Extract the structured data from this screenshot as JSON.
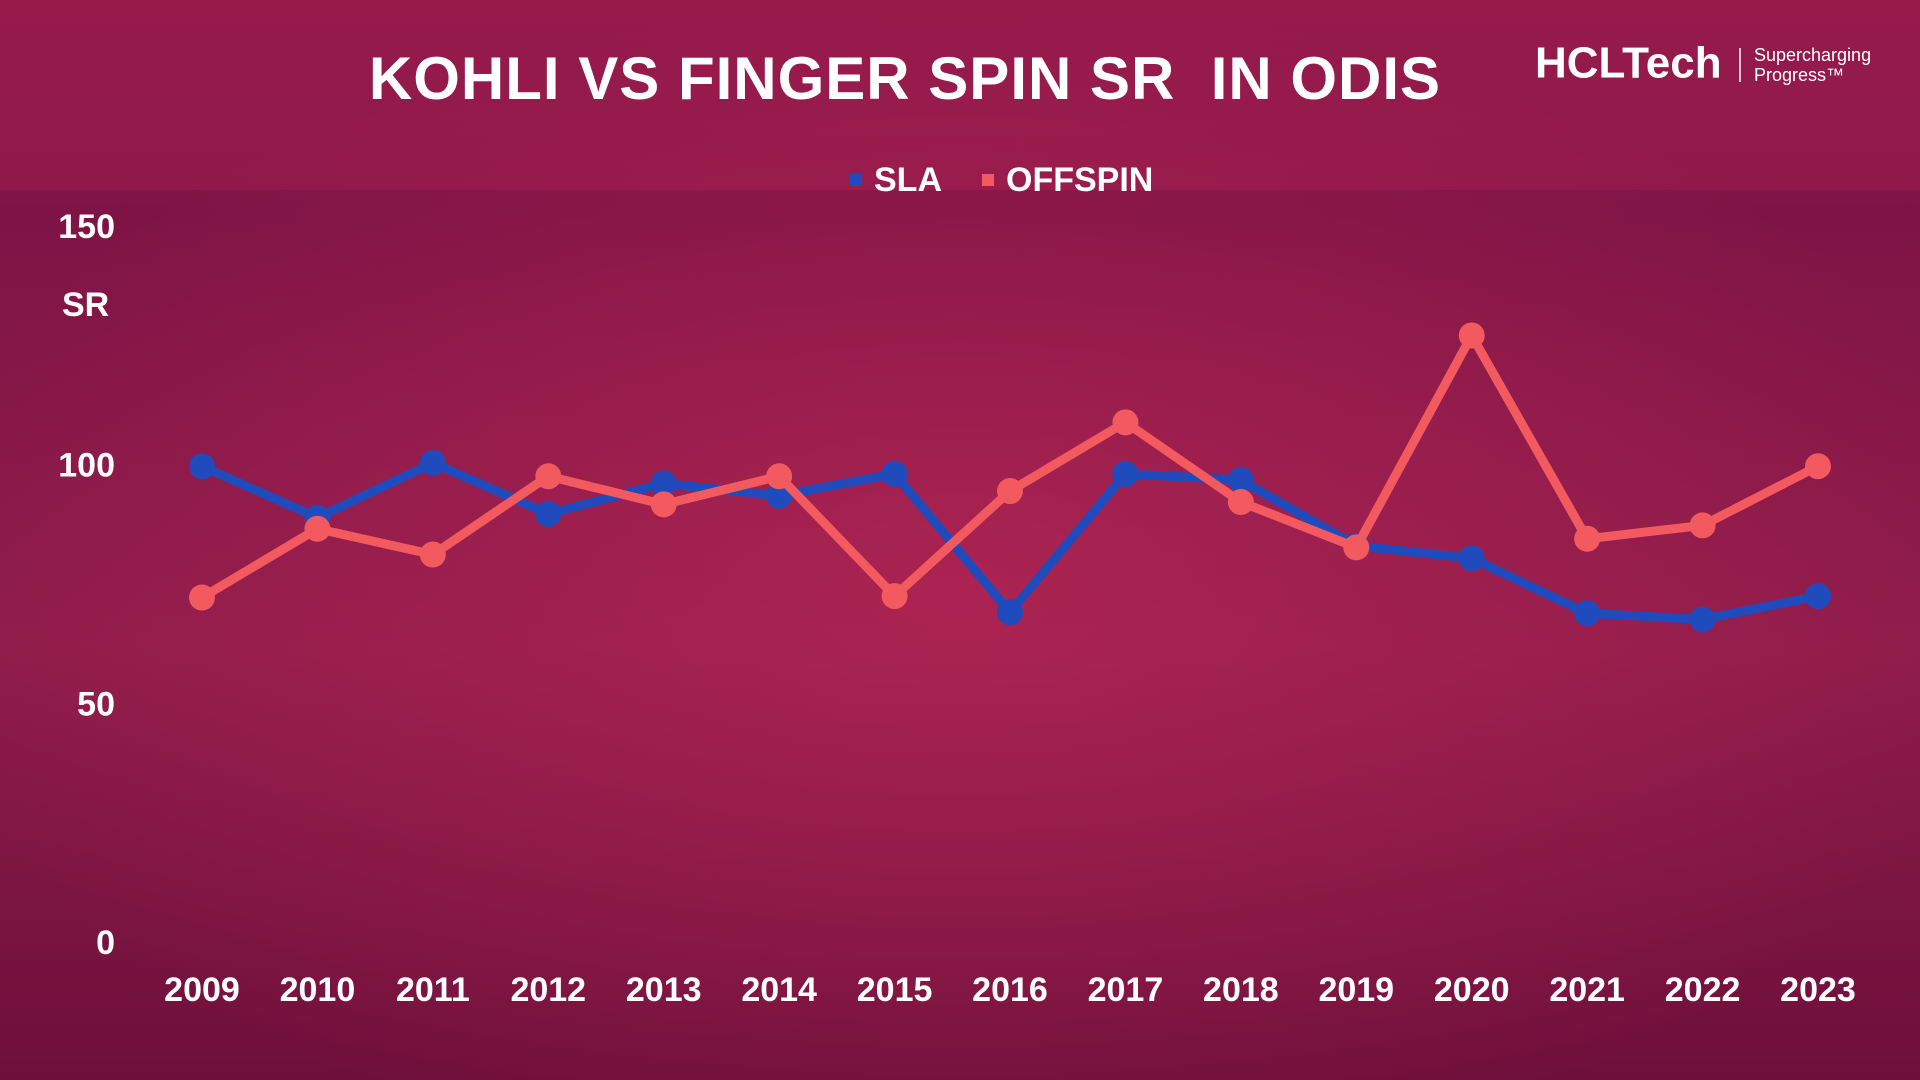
{
  "logo": {
    "name": "HCLTech",
    "tagline_1": "Supercharging",
    "tagline_2": "Progress™"
  },
  "chart_data": {
    "type": "line",
    "title": "KOHLI VS FINGER SPIN SR  IN ODIS",
    "y_label": "SR",
    "categories": [
      "2009",
      "2010",
      "2011",
      "2012",
      "2013",
      "2014",
      "2015",
      "2016",
      "2017",
      "2018",
      "2019",
      "2020",
      "2021",
      "2022",
      "2023"
    ],
    "series": [
      {
        "name": "SLA",
        "color": "#1f4bbd",
        "values": [
          100.3,
          89.5,
          101,
          90.3,
          96.7,
          94.1,
          98.7,
          69.7,
          98.7,
          97.4,
          83.6,
          81,
          69.5,
          68.2,
          73.1
        ]
      },
      {
        "name": "OFFSPIN",
        "color": "#f25a5f",
        "values": [
          72.8,
          87.2,
          81.8,
          98.2,
          92.3,
          98.2,
          73.1,
          95.1,
          109.5,
          92.8,
          83.3,
          127.7,
          85.1,
          87.9,
          100.3
        ]
      }
    ],
    "ylim": [
      0,
      150
    ],
    "yticks": [
      0,
      50,
      100,
      150
    ],
    "grid": false
  }
}
